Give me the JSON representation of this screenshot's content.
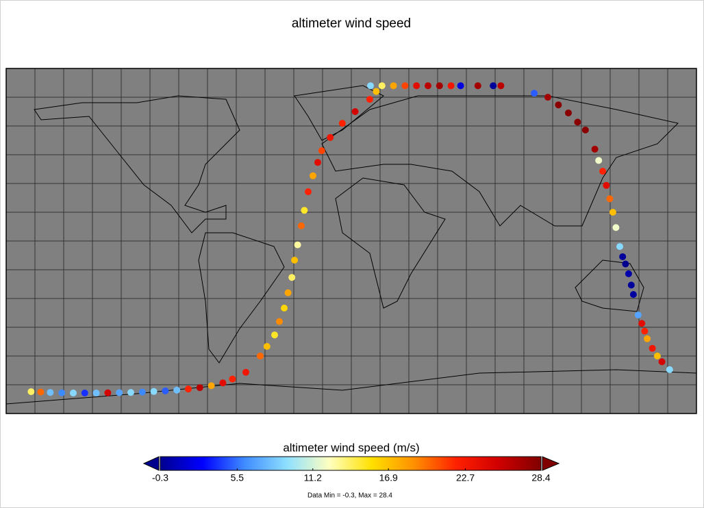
{
  "map": {
    "title": "altimeter wind speed",
    "lon_range": [
      -180,
      180
    ],
    "lat_range": [
      -90,
      90
    ],
    "lon_grid": [
      -180,
      -165,
      -150,
      -135,
      -120,
      -105,
      -90,
      -75,
      -60,
      -45,
      -30,
      -15,
      0,
      15,
      30,
      45,
      60,
      75,
      90,
      105,
      120,
      135,
      150,
      165,
      180
    ],
    "lat_grid": [
      -90,
      -75,
      -60,
      -45,
      -30,
      -15,
      0,
      15,
      30,
      45,
      60,
      75,
      90
    ],
    "track": {
      "lon": [
        -167,
        -162,
        -157,
        -151,
        -145,
        -139,
        -133,
        -127,
        -121,
        -115,
        -109,
        -103,
        -97,
        -91,
        -85,
        -79,
        -73,
        -67,
        -62,
        -55,
        -47.5,
        -44,
        -40,
        -37.5,
        -35,
        -33,
        -31,
        -29.6,
        -28,
        -26.1,
        -24.5,
        -22.5,
        -20,
        -17.5,
        -15.4,
        -11,
        -4.7,
        2,
        9.6,
        13,
        10,
        16,
        22,
        28,
        34,
        40,
        46,
        52,
        57,
        66,
        74,
        78,
        95.4,
        102.5,
        108,
        113.2,
        118,
        122.1,
        127,
        129,
        131.1,
        133,
        134.8,
        136.4,
        138,
        140,
        141.5,
        143,
        144.6,
        146,
        147.1,
        149.6,
        151.5,
        153,
        154.3,
        157,
        159.6,
        162,
        166
      ],
      "lat": [
        -78.6,
        -78.8,
        -79,
        -79.2,
        -79.3,
        -79.3,
        -79.3,
        -79.2,
        -79.1,
        -79,
        -78.8,
        -78.5,
        -78.2,
        -77.8,
        -77.2,
        -76.5,
        -75.5,
        -74,
        -72,
        -68.5,
        -60,
        -55,
        -49,
        -42,
        -35,
        -27,
        -19,
        -10,
        -2,
        7.9,
        16,
        25.7,
        34,
        41,
        47.1,
        54,
        61.4,
        67.5,
        73.9,
        78,
        81,
        81,
        81,
        81,
        81,
        81,
        81,
        81,
        81,
        81,
        81,
        81,
        77.1,
        75,
        71,
        66.8,
        62,
        57.9,
        47.9,
        42,
        36.4,
        29,
        22,
        15,
        7,
        -2.9,
        -8.2,
        -12,
        -17.1,
        -23,
        -27.9,
        -38.6,
        -43,
        -47,
        -51,
        -56,
        -60,
        -63,
        -67.1
      ],
      "values": [
        14,
        20,
        8,
        6,
        9,
        4,
        8,
        25,
        7,
        9,
        6,
        9,
        5,
        8,
        22,
        26,
        18,
        24,
        22,
        23,
        20,
        17,
        15,
        19,
        16,
        18,
        14,
        17,
        13,
        20,
        15,
        22,
        18,
        24,
        21,
        23,
        22,
        25,
        22,
        17,
        9,
        14,
        18,
        21,
        24,
        26,
        27,
        23,
        2,
        27,
        0,
        26,
        5,
        27,
        28,
        28,
        28,
        28,
        27,
        12,
        22,
        24,
        20,
        17,
        12,
        9,
        0,
        -0.3,
        0.5,
        0,
        0.2,
        7,
        24,
        22,
        18,
        23,
        17,
        25,
        9
      ]
    },
    "colorbar": {
      "label": "altimeter wind speed (m/s)",
      "clim": [
        -0.3,
        28.4
      ],
      "ticks": [
        -0.3,
        5.5,
        11.2,
        16.9,
        22.7,
        28.4
      ],
      "colormap": [
        "#00008f",
        "#0000ff",
        "#3f8cff",
        "#8fe0ff",
        "#ffffc0",
        "#ffe000",
        "#ff9000",
        "#ff2000",
        "#d00000",
        "#800000"
      ],
      "note": "Data Min = -0.3, Max = 28.4"
    }
  }
}
